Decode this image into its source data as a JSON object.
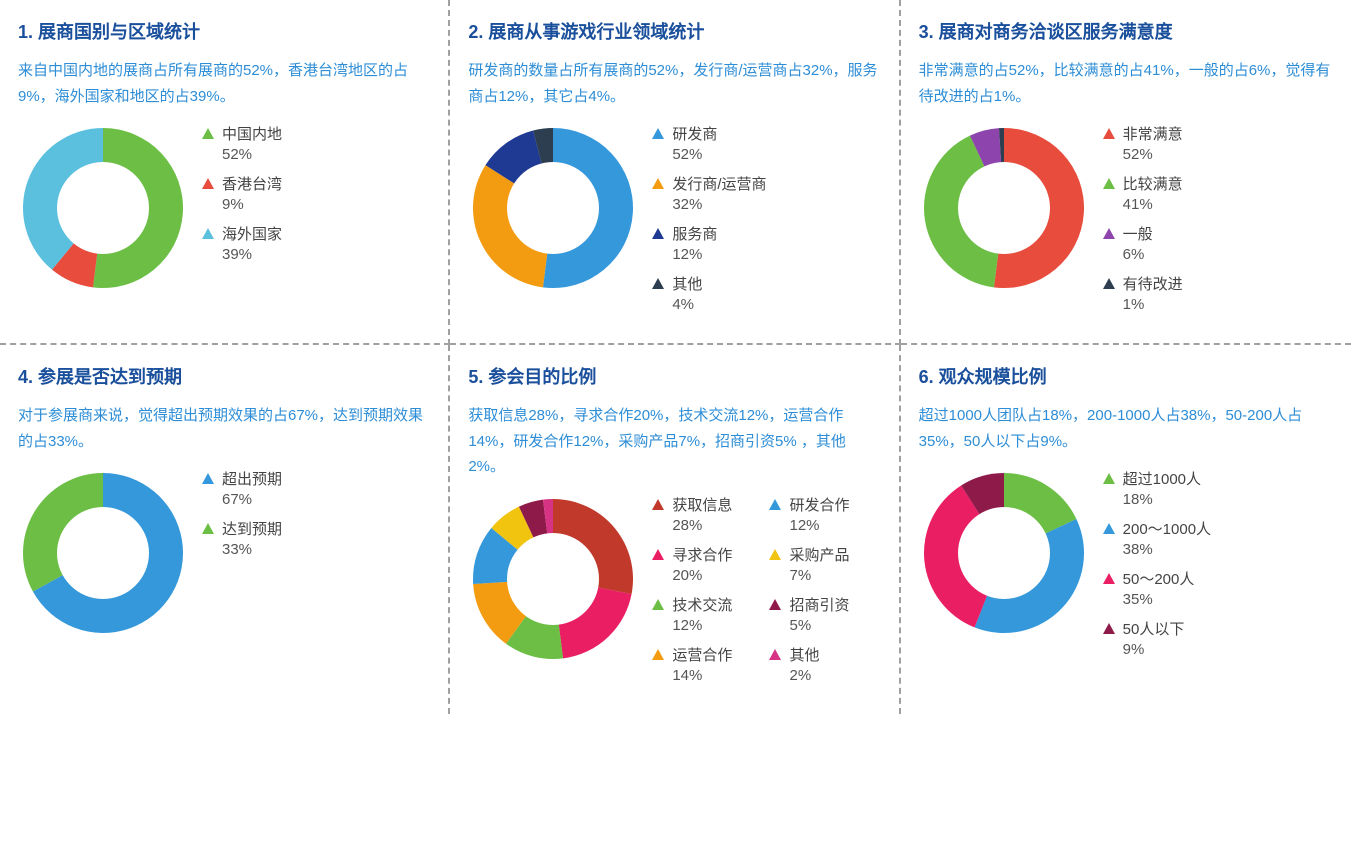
{
  "colors": {
    "title": "#1a4f9c",
    "desc": "#2d8dd6",
    "text": "#444444",
    "pct": "#555555",
    "border": "#a0a0a0",
    "white": "#ffffff"
  },
  "donut": {
    "outer_r": 80,
    "inner_r": 46,
    "size": 170
  },
  "panels": [
    {
      "title": "1. 展商国别与区域统计",
      "desc": "来自中国内地的展商占所有展商的52%，香港台湾地区的占9%，海外国家和地区的占39%。",
      "legend_cols": 1,
      "slices": [
        {
          "label": "中国内地",
          "value": 52,
          "color": "#6cbe45",
          "tri_dir": "up"
        },
        {
          "label": "香港台湾",
          "value": 9,
          "color": "#e74c3c",
          "tri_dir": "up"
        },
        {
          "label": "海外国家",
          "value": 39,
          "color": "#5bc0de",
          "tri_dir": "up"
        }
      ]
    },
    {
      "title": "2. 展商从事游戏行业领域统计",
      "desc": "研发商的数量占所有展商的52%，发行商/运营商占32%，服务商占12%，其它占4%。",
      "legend_cols": 1,
      "slices": [
        {
          "label": "研发商",
          "value": 52,
          "color": "#3498db",
          "tri_dir": "up"
        },
        {
          "label": "发行商/运营商",
          "value": 32,
          "color": "#f39c12",
          "tri_dir": "up"
        },
        {
          "label": "服务商",
          "value": 12,
          "color": "#1f3a93",
          "tri_dir": "up"
        },
        {
          "label": "其他",
          "value": 4,
          "color": "#2c3e50",
          "tri_dir": "up"
        }
      ]
    },
    {
      "title": "3. 展商对商务洽谈区服务满意度",
      "desc": "非常满意的占52%，比较满意的占41%，一般的占6%，觉得有待改进的占1%。",
      "legend_cols": 1,
      "slices": [
        {
          "label": "非常满意",
          "value": 52,
          "color": "#e74c3c",
          "tri_dir": "up"
        },
        {
          "label": "比较满意",
          "value": 41,
          "color": "#6cbe45",
          "tri_dir": "up"
        },
        {
          "label": "一般",
          "value": 6,
          "color": "#8e44ad",
          "tri_dir": "up"
        },
        {
          "label": "有待改进",
          "value": 1,
          "color": "#2c3e50",
          "tri_dir": "up"
        }
      ]
    },
    {
      "title": "4. 参展是否达到预期",
      "desc": "对于参展商来说，觉得超出预期效果的占67%，达到预期效果的占33%。",
      "legend_cols": 1,
      "slices": [
        {
          "label": "超出预期",
          "value": 67,
          "color": "#3498db",
          "tri_dir": "up"
        },
        {
          "label": "达到预期",
          "value": 33,
          "color": "#6cbe45",
          "tri_dir": "up"
        }
      ]
    },
    {
      "title": "5. 参会目的比例",
      "desc": "获取信息28%，寻求合作20%，技术交流12%，运营合作14%，研发合作12%，采购产品7%，招商引资5% ，其他2%。",
      "legend_cols": 2,
      "slices": [
        {
          "label": "获取信息",
          "value": 28,
          "color": "#c0392b",
          "tri_dir": "up"
        },
        {
          "label": "寻求合作",
          "value": 20,
          "color": "#e91e63",
          "tri_dir": "up"
        },
        {
          "label": "技术交流",
          "value": 12,
          "color": "#6cbe45",
          "tri_dir": "up"
        },
        {
          "label": "运营合作",
          "value": 14,
          "color": "#f39c12",
          "tri_dir": "up"
        },
        {
          "label": "研发合作",
          "value": 12,
          "color": "#3498db",
          "tri_dir": "up"
        },
        {
          "label": "采购产品",
          "value": 7,
          "color": "#f1c40f",
          "tri_dir": "up"
        },
        {
          "label": "招商引资",
          "value": 5,
          "color": "#8e1a4a",
          "tri_dir": "up"
        },
        {
          "label": "其他",
          "value": 2,
          "color": "#d63384",
          "tri_dir": "up"
        }
      ]
    },
    {
      "title": "6. 观众规模比例",
      "desc": "超过1000人团队占18%，200-1000人占38%，50-200人占35%，50人以下占9%。",
      "legend_cols": 1,
      "slices": [
        {
          "label": "超过1000人",
          "value": 18,
          "color": "#6cbe45",
          "tri_dir": "up"
        },
        {
          "label": "200～1000人",
          "value": 38,
          "color": "#3498db",
          "tri_dir": "up"
        },
        {
          "label": "50～200人",
          "value": 35,
          "color": "#e91e63",
          "tri_dir": "up"
        },
        {
          "label": "50人以下",
          "value": 9,
          "color": "#8e1a4a",
          "tri_dir": "up"
        }
      ]
    }
  ]
}
